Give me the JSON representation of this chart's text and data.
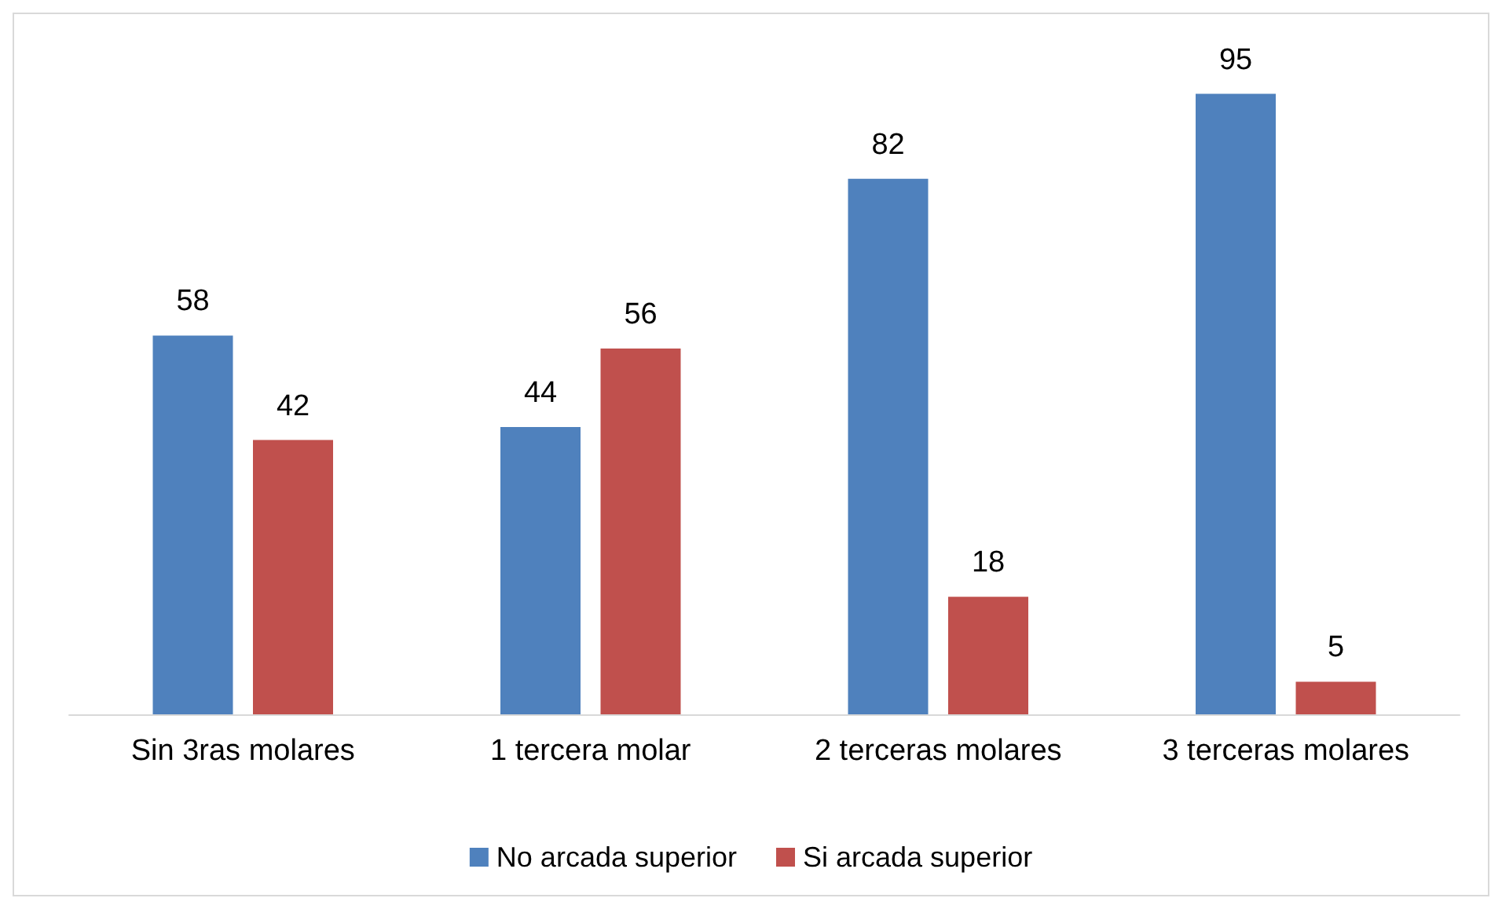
{
  "chart_data": {
    "type": "bar",
    "categories": [
      "Sin 3ras molares",
      "1 tercera molar",
      "2 terceras molares",
      "3 terceras molares"
    ],
    "series": [
      {
        "name": "No arcada superior",
        "color": "#4f81bd",
        "values": [
          58,
          44,
          82,
          95
        ]
      },
      {
        "name": "Si arcada superior",
        "color": "#c0504d",
        "values": [
          42,
          56,
          18,
          5
        ]
      }
    ],
    "data_labels": true,
    "legend": "bottom"
  }
}
